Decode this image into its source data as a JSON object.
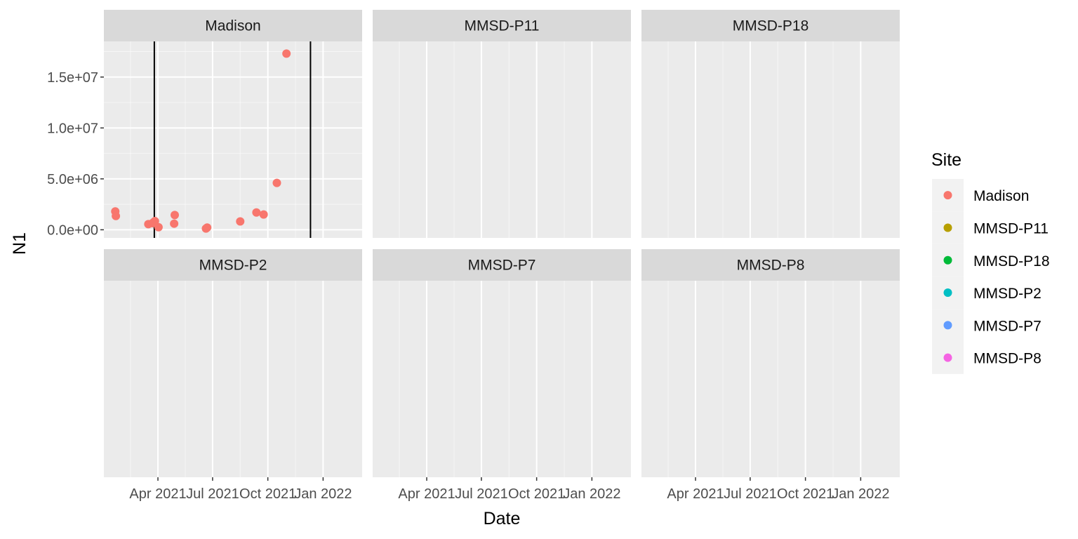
{
  "chart_data": {
    "type": "scatter",
    "xlabel": "Date",
    "ylabel": "N1",
    "x_tick_labels": [
      "Apr 2021",
      "Jul 2021",
      "Oct 2021",
      "Jan 2022"
    ],
    "y_tick_labels": [
      "0.0e+00",
      "5.0e+06",
      "1.0e+07",
      "1.5e+07"
    ],
    "x_ticks": [
      "2021-04-01",
      "2021-07-01",
      "2021-10-01",
      "2022-01-01"
    ],
    "y_ticks": [
      0,
      5000000,
      10000000,
      15000000
    ],
    "xlim": [
      "2021-01-01",
      "2022-03-07"
    ],
    "ylim": [
      -800000,
      18500000
    ],
    "grid": true,
    "legend": {
      "title": "Site",
      "position": "right",
      "entries": [
        {
          "label": "Madison",
          "color": "#F8766D"
        },
        {
          "label": "MMSD-P11",
          "color": "#B79F00"
        },
        {
          "label": "MMSD-P18",
          "color": "#00BA38"
        },
        {
          "label": "MMSD-P2",
          "color": "#00BFC4"
        },
        {
          "label": "MMSD-P7",
          "color": "#619CFF"
        },
        {
          "label": "MMSD-P8",
          "color": "#F564E3"
        }
      ]
    },
    "facets": [
      {
        "title": "Madison",
        "color": "#F8766D",
        "vlines": [
          "2021-03-26",
          "2021-12-11"
        ],
        "points": [
          {
            "x": "2021-01-20",
            "y": 1800000
          },
          {
            "x": "2021-01-21",
            "y": 1350000
          },
          {
            "x": "2021-03-16",
            "y": 550000
          },
          {
            "x": "2021-03-23",
            "y": 650000
          },
          {
            "x": "2021-03-25",
            "y": 750000
          },
          {
            "x": "2021-03-27",
            "y": 850000
          },
          {
            "x": "2021-04-02",
            "y": 250000
          },
          {
            "x": "2021-04-28",
            "y": 600000
          },
          {
            "x": "2021-04-29",
            "y": 1450000
          },
          {
            "x": "2021-06-20",
            "y": 120000
          },
          {
            "x": "2021-06-22",
            "y": 220000
          },
          {
            "x": "2021-08-16",
            "y": 820000
          },
          {
            "x": "2021-09-12",
            "y": 1700000
          },
          {
            "x": "2021-09-24",
            "y": 1500000
          },
          {
            "x": "2021-10-16",
            "y": 4600000
          },
          {
            "x": "2021-11-01",
            "y": 17300000
          }
        ]
      },
      {
        "title": "MMSD-P11",
        "color": "#B79F00",
        "points": []
      },
      {
        "title": "MMSD-P18",
        "color": "#00BA38",
        "points": []
      },
      {
        "title": "MMSD-P2",
        "color": "#00BFC4",
        "points": []
      },
      {
        "title": "MMSD-P7",
        "color": "#619CFF",
        "points": []
      },
      {
        "title": "MMSD-P8",
        "color": "#F564E3",
        "points": []
      }
    ],
    "colors": {
      "panel_background": "#EBEBEB",
      "grid_major": "#FFFFFF",
      "strip_background": "#D9D9D9",
      "vline": "#000000"
    }
  }
}
